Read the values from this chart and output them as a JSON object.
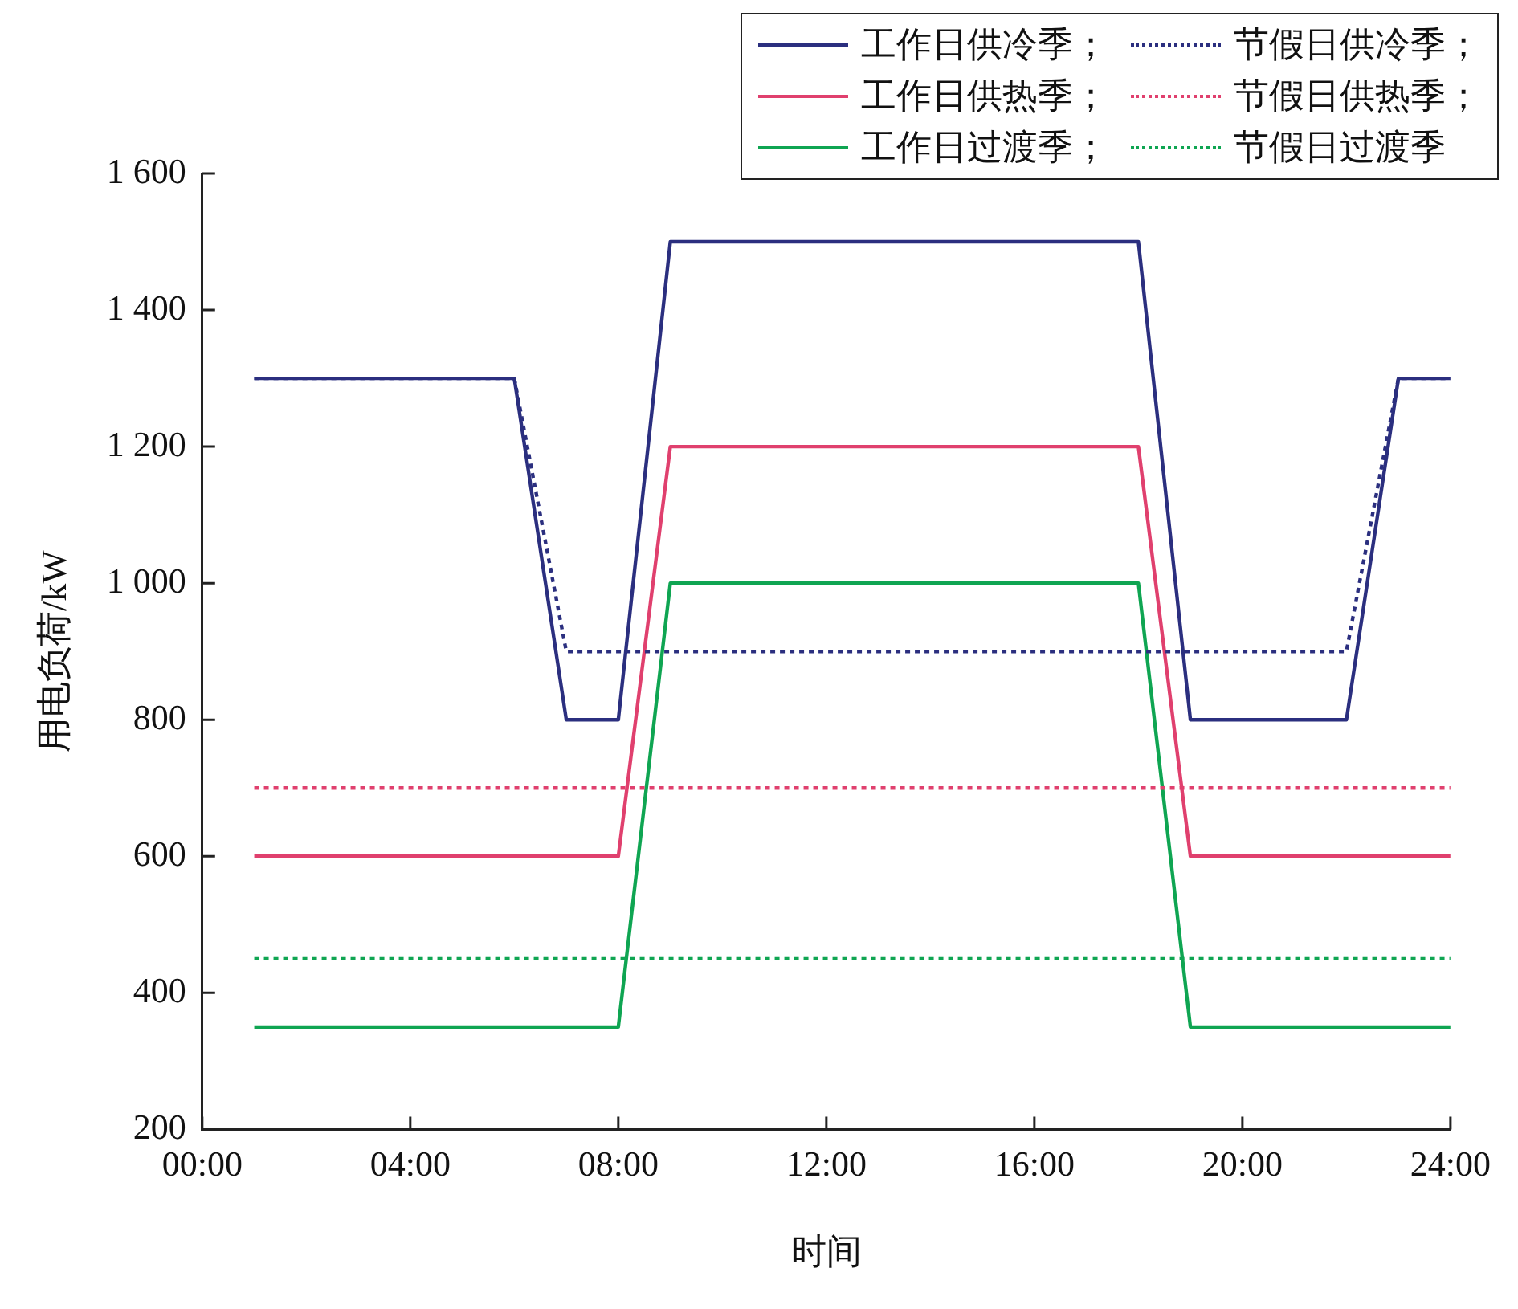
{
  "chart_data": {
    "type": "line",
    "xlabel": "时间",
    "ylabel": "用电负荷/kW",
    "x": [
      1,
      2,
      3,
      4,
      5,
      6,
      7,
      8,
      9,
      10,
      11,
      12,
      13,
      14,
      15,
      16,
      17,
      18,
      19,
      20,
      21,
      22,
      23,
      24
    ],
    "series": [
      {
        "name": "工作日供冷季；",
        "color": "#2b2f7f",
        "line_style": "solid",
        "values": [
          1300,
          1300,
          1300,
          1300,
          1300,
          1300,
          800,
          800,
          1500,
          1500,
          1500,
          1500,
          1500,
          1500,
          1500,
          1500,
          1500,
          1500,
          800,
          800,
          800,
          800,
          1300,
          1300
        ]
      },
      {
        "name": "节假日供冷季；",
        "color": "#2b2f7f",
        "line_style": "dotted",
        "values": [
          1300,
          1300,
          1300,
          1300,
          1300,
          1300,
          900,
          900,
          900,
          900,
          900,
          900,
          900,
          900,
          900,
          900,
          900,
          900,
          900,
          900,
          900,
          900,
          1300,
          1300
        ]
      },
      {
        "name": "工作日供热季；",
        "color": "#e0406e",
        "line_style": "solid",
        "values": [
          600,
          600,
          600,
          600,
          600,
          600,
          600,
          600,
          1200,
          1200,
          1200,
          1200,
          1200,
          1200,
          1200,
          1200,
          1200,
          1200,
          600,
          600,
          600,
          600,
          600,
          600
        ]
      },
      {
        "name": "节假日供热季；",
        "color": "#e0406e",
        "line_style": "dotted",
        "values": [
          700,
          700,
          700,
          700,
          700,
          700,
          700,
          700,
          700,
          700,
          700,
          700,
          700,
          700,
          700,
          700,
          700,
          700,
          700,
          700,
          700,
          700,
          700,
          700
        ]
      },
      {
        "name": "工作日过渡季；",
        "color": "#0fa552",
        "line_style": "solid",
        "values": [
          350,
          350,
          350,
          350,
          350,
          350,
          350,
          350,
          1000,
          1000,
          1000,
          1000,
          1000,
          1000,
          1000,
          1000,
          1000,
          1000,
          350,
          350,
          350,
          350,
          350,
          350
        ]
      },
      {
        "name": "节假日过渡季",
        "color": "#0fa552",
        "line_style": "dotted",
        "values": [
          450,
          450,
          450,
          450,
          450,
          450,
          450,
          450,
          450,
          450,
          450,
          450,
          450,
          450,
          450,
          450,
          450,
          450,
          450,
          450,
          450,
          450,
          450,
          450
        ]
      }
    ],
    "xlim": [
      0,
      24
    ],
    "xticks": [
      {
        "value": 0,
        "label": "00:00"
      },
      {
        "value": 4,
        "label": "04:00"
      },
      {
        "value": 8,
        "label": "08:00"
      },
      {
        "value": 12,
        "label": "12:00"
      },
      {
        "value": 16,
        "label": "16:00"
      },
      {
        "value": 20,
        "label": "20:00"
      },
      {
        "value": 24,
        "label": "24:00"
      }
    ],
    "ylim": [
      200,
      1600
    ],
    "yticks": [
      200,
      400,
      600,
      800,
      {
        "value": 1000,
        "label": "1 000"
      },
      {
        "value": 1200,
        "label": "1 200"
      },
      {
        "value": 1400,
        "label": "1 400"
      },
      {
        "value": 1600,
        "label": "1 600"
      }
    ],
    "grid": false,
    "legend": "top right",
    "marker": "none"
  }
}
